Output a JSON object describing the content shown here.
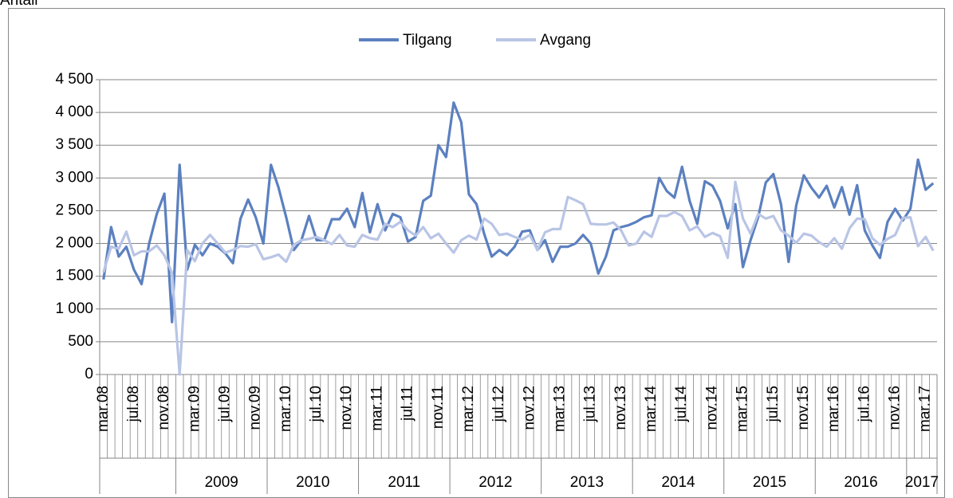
{
  "chart_data": {
    "type": "line",
    "y_axis_label": "Antall",
    "categories": [
      "mar.08",
      null,
      null,
      null,
      "jul.08",
      null,
      null,
      null,
      "nov.08",
      null,
      null,
      null,
      "mar.09",
      null,
      null,
      null,
      "jul.09",
      null,
      null,
      null,
      "nov.09",
      null,
      null,
      null,
      "mar.10",
      null,
      null,
      null,
      "jul.10",
      null,
      null,
      null,
      "nov.10",
      null,
      null,
      null,
      "mar.11",
      null,
      null,
      null,
      "jul.11",
      null,
      null,
      null,
      "nov.11",
      null,
      null,
      null,
      "mar.12",
      null,
      null,
      null,
      "jul.12",
      null,
      null,
      null,
      "nov.12",
      null,
      null,
      null,
      "mar.13",
      null,
      null,
      null,
      "jul.13",
      null,
      null,
      null,
      "nov.13",
      null,
      null,
      null,
      "mar.14",
      null,
      null,
      null,
      "jul.14",
      null,
      null,
      null,
      "nov.14",
      null,
      null,
      null,
      "mar.15",
      null,
      null,
      null,
      "jul.15",
      null,
      null,
      null,
      "nov.15",
      null,
      null,
      null,
      "mar.16",
      null,
      null,
      null,
      "jul.16",
      null,
      null,
      null,
      "nov.16",
      null,
      null,
      null,
      "mar.17",
      null
    ],
    "category_years": [
      null,
      null,
      null,
      null,
      null,
      null,
      null,
      null,
      null,
      null,
      "2009",
      "2009",
      "2009",
      "2009",
      "2009",
      "2009",
      "2009",
      "2009",
      "2009",
      "2009",
      "2009",
      "2009",
      "2010",
      "2010",
      "2010",
      "2010",
      "2010",
      "2010",
      "2010",
      "2010",
      "2010",
      "2010",
      "2010",
      "2010",
      "2011",
      "2011",
      "2011",
      "2011",
      "2011",
      "2011",
      "2011",
      "2011",
      "2011",
      "2011",
      "2011",
      "2011",
      "2012",
      "2012",
      "2012",
      "2012",
      "2012",
      "2012",
      "2012",
      "2012",
      "2012",
      "2012",
      "2012",
      "2012",
      "2013",
      "2013",
      "2013",
      "2013",
      "2013",
      "2013",
      "2013",
      "2013",
      "2013",
      "2013",
      "2013",
      "2013",
      "2014",
      "2014",
      "2014",
      "2014",
      "2014",
      "2014",
      "2014",
      "2014",
      "2014",
      "2014",
      "2014",
      "2014",
      "2015",
      "2015",
      "2015",
      "2015",
      "2015",
      "2015",
      "2015",
      "2015",
      "2015",
      "2015",
      "2015",
      "2015",
      "2016",
      "2016",
      "2016",
      "2016",
      "2016",
      "2016",
      "2016",
      "2016",
      "2016",
      "2016",
      "2016",
      "2016",
      "2017",
      "2017",
      "2017",
      "2017"
    ],
    "series": [
      {
        "name": "Tilgang",
        "color": "#5b80c0",
        "values": [
          1450,
          2250,
          1800,
          1950,
          1600,
          1380,
          2000,
          2450,
          2760,
          800,
          3200,
          1600,
          1980,
          1820,
          2000,
          1950,
          1850,
          1700,
          2380,
          2670,
          2400,
          2000,
          3200,
          2850,
          2400,
          1900,
          2050,
          2420,
          2050,
          2050,
          2370,
          2370,
          2530,
          2250,
          2770,
          2170,
          2600,
          2200,
          2450,
          2400,
          2030,
          2100,
          2650,
          2730,
          3500,
          3320,
          4150,
          3850,
          2750,
          2600,
          2150,
          1800,
          1900,
          1820,
          1950,
          2180,
          2200,
          1900,
          2050,
          1720,
          1950,
          1950,
          2000,
          2130,
          2000,
          1540,
          1800,
          2200,
          2250,
          2280,
          2330,
          2400,
          2430,
          3000,
          2800,
          2700,
          3170,
          2650,
          2300,
          2950,
          2880,
          2650,
          2230,
          2600,
          1640,
          2050,
          2400,
          2930,
          3060,
          2600,
          1720,
          2580,
          3040,
          2850,
          2700,
          2880,
          2550,
          2860,
          2440,
          2890,
          2200,
          1970,
          1780,
          2330,
          2530,
          2350,
          2530,
          3280,
          2820,
          2920
        ]
      },
      {
        "name": "Avgang",
        "color": "#b9c5e5",
        "values": [
          1560,
          1950,
          1920,
          2180,
          1820,
          1880,
          1880,
          1970,
          1820,
          1550,
          0,
          1900,
          1730,
          2000,
          2130,
          2000,
          1860,
          1900,
          1960,
          1950,
          1990,
          1760,
          1790,
          1830,
          1720,
          1980,
          2050,
          2070,
          2100,
          2050,
          1990,
          2130,
          1970,
          1950,
          2130,
          2080,
          2060,
          2300,
          2250,
          2330,
          2200,
          2120,
          2250,
          2080,
          2150,
          2000,
          1860,
          2050,
          2120,
          2060,
          2380,
          2300,
          2130,
          2150,
          2100,
          2060,
          2130,
          1900,
          2170,
          2220,
          2220,
          2710,
          2660,
          2600,
          2300,
          2290,
          2290,
          2320,
          2200,
          1970,
          2000,
          2180,
          2100,
          2420,
          2420,
          2480,
          2420,
          2200,
          2260,
          2100,
          2160,
          2110,
          1780,
          2940,
          2380,
          2150,
          2450,
          2380,
          2420,
          2200,
          2120,
          2010,
          2150,
          2120,
          2020,
          1950,
          2080,
          1920,
          2230,
          2380,
          2370,
          2080,
          1980,
          2070,
          2130,
          2390,
          2400,
          1960,
          2100,
          1890
        ]
      }
    ],
    "ylim": [
      0,
      4500
    ],
    "yticks": [
      0,
      500,
      {
        "value": 1000,
        "label": "1 000"
      },
      {
        "value": 1500,
        "label": "1 500"
      },
      {
        "value": 2000,
        "label": "2 000"
      },
      {
        "value": 2500,
        "label": "2 500"
      },
      {
        "value": 3000,
        "label": "3 000"
      },
      {
        "value": 3500,
        "label": "3 500"
      },
      {
        "value": 4000,
        "label": "4 000"
      },
      {
        "value": 4500,
        "label": "4 500"
      }
    ],
    "grid": true,
    "legend": "top"
  }
}
